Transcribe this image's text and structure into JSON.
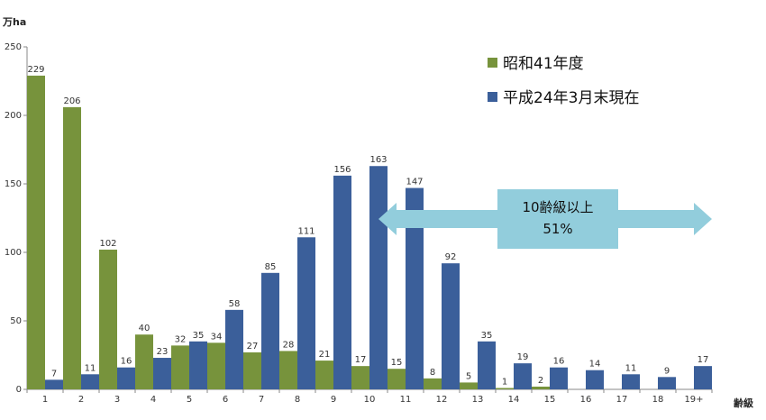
{
  "chart_data": {
    "type": "bar",
    "y_unit": "万ha",
    "x_unit": "齢級",
    "ylim": [
      0,
      250
    ],
    "yticks": [
      "0",
      "50",
      "100",
      "150",
      "200",
      "250"
    ],
    "categories": [
      "1",
      "2",
      "3",
      "4",
      "5",
      "6",
      "7",
      "8",
      "9",
      "10",
      "11",
      "12",
      "13",
      "14",
      "15",
      "16",
      "17",
      "18",
      "19+"
    ],
    "series": [
      {
        "name": "昭和41年度",
        "color": "#77933c",
        "values": [
          229,
          206,
          102,
          40,
          32,
          34,
          27,
          28,
          21,
          17,
          15,
          8,
          5,
          1,
          2,
          null,
          null,
          null,
          null
        ]
      },
      {
        "name": "平成24年3月末現在",
        "color": "#3b5f9a",
        "values": [
          7,
          11,
          16,
          23,
          35,
          58,
          85,
          111,
          156,
          163,
          147,
          92,
          35,
          19,
          16,
          14,
          11,
          9,
          17
        ]
      }
    ],
    "annotation": {
      "line1": "10齢級以上",
      "line2": "51%",
      "color": "#92cddc"
    },
    "legend_position": "top-right",
    "grid": false
  }
}
